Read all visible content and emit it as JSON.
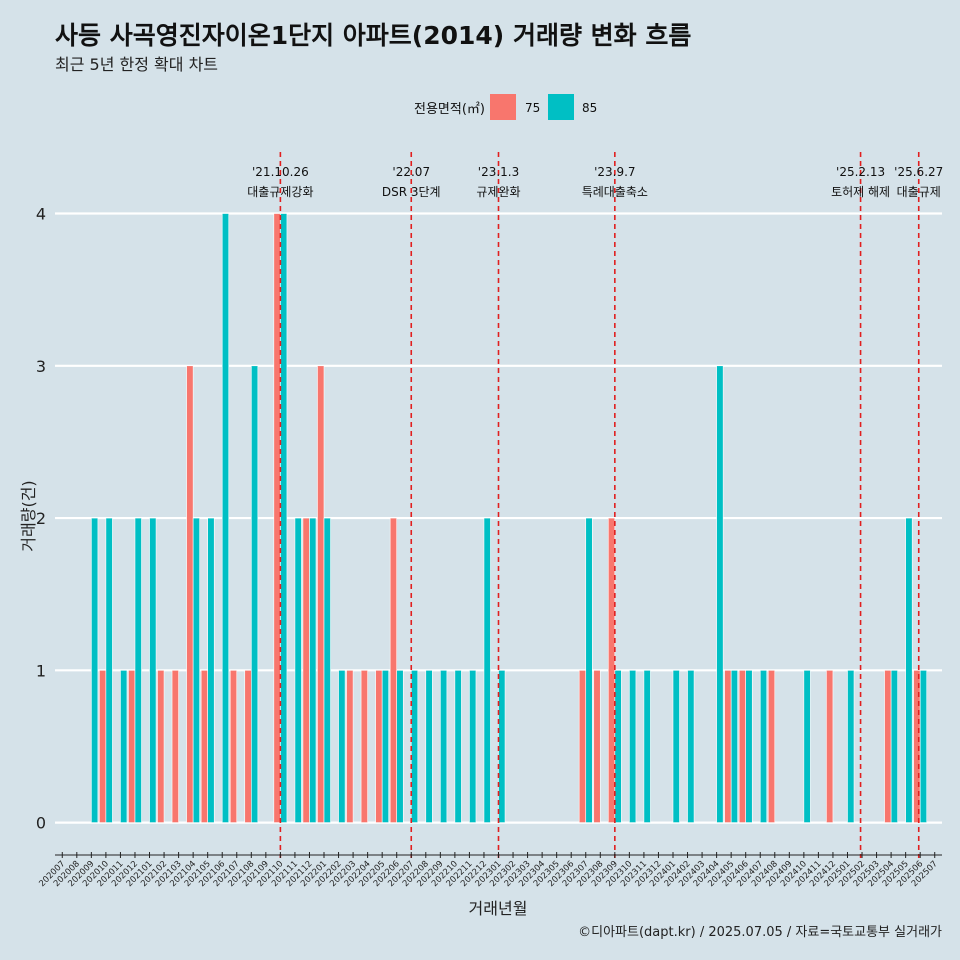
{
  "chart_data": {
    "type": "bar",
    "title": "사등 사곡영진자이온1단지 아파트(2014) 거래량 변화 흐름",
    "subtitle": "최근 5년 한정 확대 차트",
    "xlabel": "거래년월",
    "ylabel": "거래량(건)",
    "ylim": [
      -0.18,
      4.45
    ],
    "yticks": [
      0,
      1,
      2,
      3,
      4
    ],
    "legend": {
      "title": "전용면적(㎡)",
      "position": "top"
    },
    "caption": "©디아파트(dapt.kr) / 2025.07.05 / 자료=국토교통부 실거래가",
    "categories": [
      "202007",
      "202008",
      "202009",
      "202010",
      "202011",
      "202012",
      "202101",
      "202102",
      "202103",
      "202104",
      "202105",
      "202106",
      "202107",
      "202108",
      "202109",
      "202110",
      "202111",
      "202112",
      "202201",
      "202202",
      "202203",
      "202204",
      "202205",
      "202206",
      "202207",
      "202208",
      "202209",
      "202210",
      "202211",
      "202212",
      "202301",
      "202302",
      "202303",
      "202304",
      "202305",
      "202306",
      "202307",
      "202308",
      "202309",
      "202310",
      "202311",
      "202312",
      "202401",
      "202402",
      "202403",
      "202404",
      "202405",
      "202406",
      "202407",
      "202408",
      "202409",
      "202410",
      "202411",
      "202412",
      "202501",
      "202502",
      "202503",
      "202504",
      "202505",
      "202506",
      "202507"
    ],
    "series": [
      {
        "name": "75",
        "color": "#f8766d",
        "values": [
          0,
          0,
          0,
          1,
          0,
          1,
          0,
          1,
          1,
          3,
          1,
          0,
          1,
          1,
          0,
          4,
          0,
          2,
          3,
          0,
          1,
          1,
          1,
          2,
          0,
          0,
          0,
          0,
          0,
          0,
          0,
          0,
          0,
          0,
          0,
          0,
          1,
          1,
          2,
          0,
          0,
          0,
          0,
          0,
          0,
          0,
          1,
          1,
          0,
          1,
          0,
          0,
          0,
          1,
          0,
          0,
          0,
          1,
          0,
          1,
          0
        ]
      },
      {
        "name": "85",
        "color": "#00bfc4",
        "values": [
          0,
          0,
          2,
          2,
          1,
          2,
          2,
          0,
          0,
          2,
          2,
          4,
          0,
          3,
          0,
          4,
          2,
          2,
          2,
          1,
          0,
          0,
          1,
          1,
          1,
          1,
          1,
          1,
          1,
          2,
          1,
          0,
          0,
          0,
          0,
          0,
          2,
          0,
          1,
          1,
          1,
          0,
          1,
          1,
          0,
          3,
          1,
          1,
          1,
          0,
          0,
          1,
          0,
          0,
          1,
          0,
          0,
          1,
          2,
          1,
          0
        ]
      }
    ],
    "events": [
      {
        "date_line1": "'21.10.26",
        "date_line2": "대출규제강화",
        "position": 15.5
      },
      {
        "date_line1": "'22.07",
        "date_line2": "DSR 3단계",
        "position": 24.5
      },
      {
        "date_line1": "'23.1.3",
        "date_line2": "규제완화",
        "position": 30.5
      },
      {
        "date_line1": "'23.9.7",
        "date_line2": "특례대출축소",
        "position": 38.5
      },
      {
        "date_line1": "'25.2.13",
        "date_line2": "토허제 해제",
        "position": 55.4
      },
      {
        "date_line1": "'25.6.27",
        "date_line2": "대출규제",
        "position": 59.4
      }
    ]
  }
}
